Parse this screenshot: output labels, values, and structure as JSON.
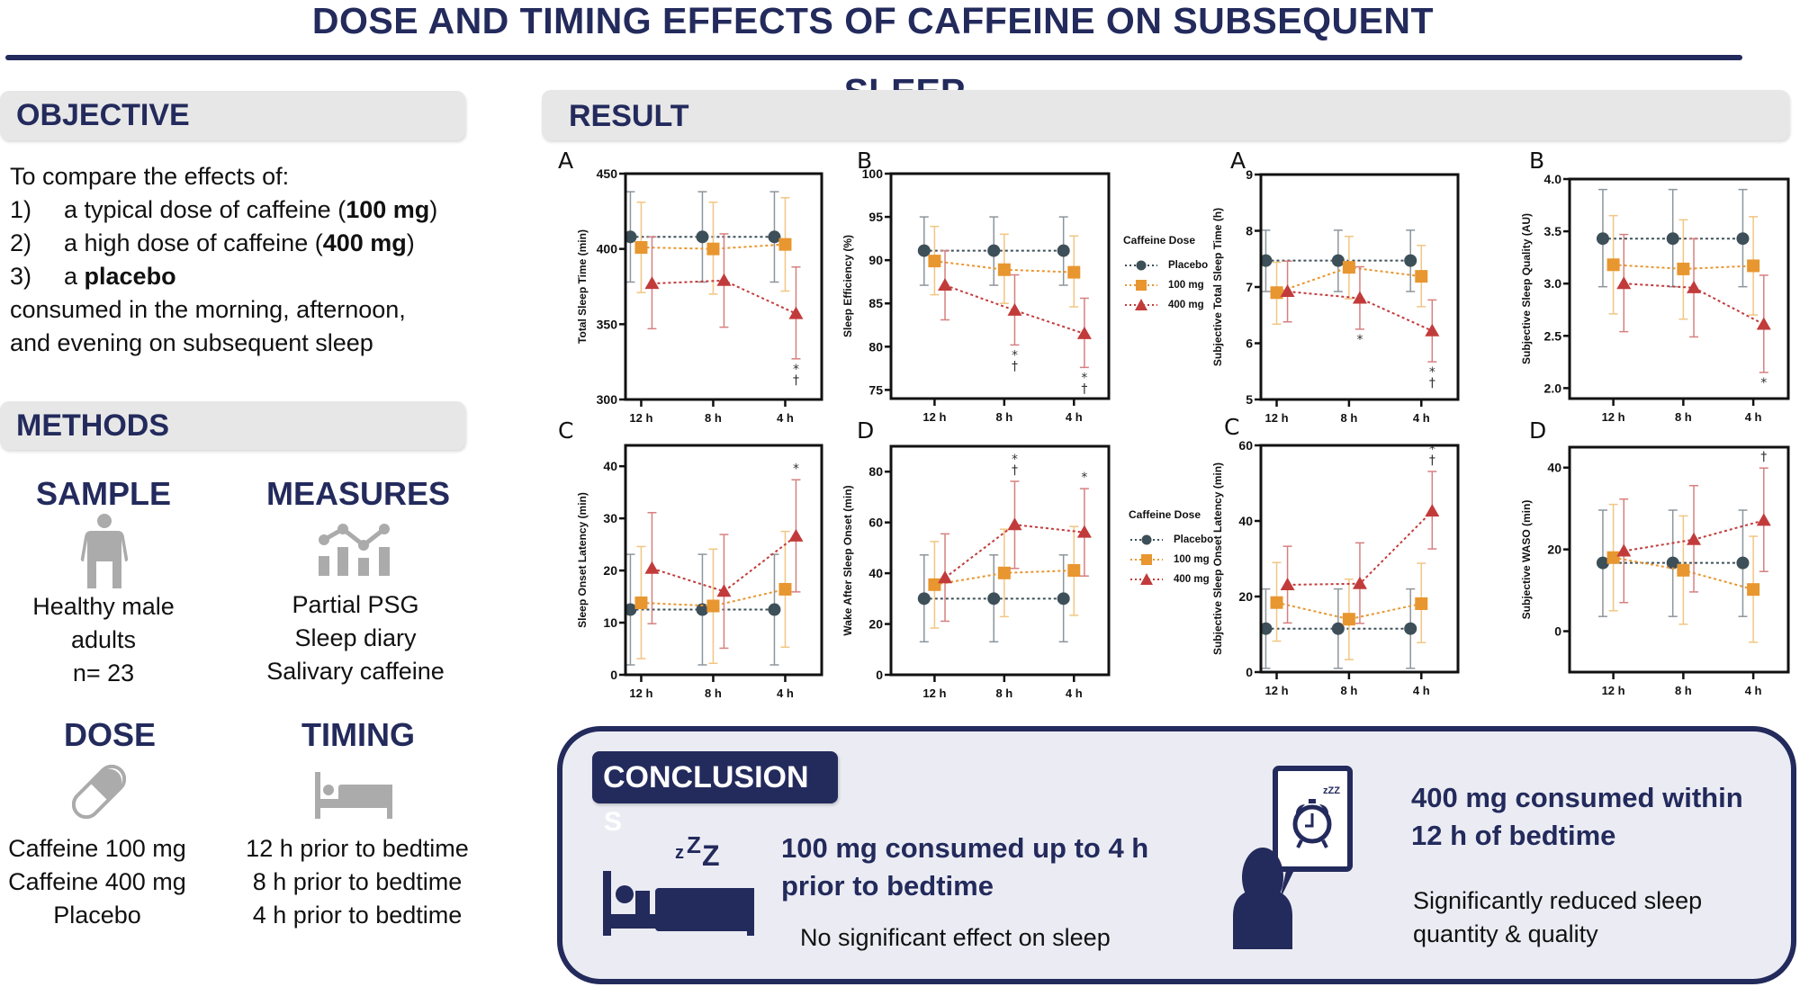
{
  "title": {
    "line1": "DOSE AND TIMING EFFECTS OF CAFFEINE ON SUBSEQUENT",
    "line2": "SLEEP"
  },
  "objective": {
    "heading": "OBJECTIVE",
    "intro": "To compare the effects of:",
    "items": [
      {
        "num": "1)",
        "pre": "a typical dose of caffeine (",
        "bold": "100 mg",
        "post": ")"
      },
      {
        "num": "2)",
        "pre": "a high dose of caffeine (",
        "bold": "400 mg",
        "post": ")"
      },
      {
        "num": "3)",
        "pre": "a ",
        "bold": "placebo",
        "post": ""
      }
    ],
    "outro1": "consumed in the morning, afternoon,",
    "outro2": "and evening on subsequent sleep"
  },
  "methods": {
    "heading": "METHODS",
    "sample": {
      "heading": "SAMPLE",
      "icon": "person-icon",
      "lines": [
        "Healthy male",
        "adults",
        "n= 23"
      ]
    },
    "measures": {
      "heading": "MEASURES",
      "icon": "chart-icon",
      "lines": [
        "Partial PSG",
        "Sleep diary",
        "Salivary caffeine"
      ]
    },
    "dose": {
      "heading": "DOSE",
      "icon": "pill-icon",
      "lines": [
        "Caffeine 100 mg",
        "Caffeine 400 mg",
        "Placebo"
      ]
    },
    "timing": {
      "heading": "TIMING",
      "icon": "bed-icon",
      "lines": [
        "12 h prior to bedtime",
        "8 h prior to bedtime",
        "4 h prior to bedtime"
      ]
    }
  },
  "result": {
    "heading": "RESULT"
  },
  "legend": {
    "title": "Caffeine Dose",
    "items": [
      "Placebo",
      "100 mg",
      "400 mg"
    ]
  },
  "colors": {
    "placebo": "#3d4f58",
    "mg100": "#e8962f",
    "mg400": "#c23b3b",
    "navy": "#232a5c"
  },
  "conclusion": {
    "heading": "CONCLUSION",
    "heading_overflow": "S",
    "left": {
      "line1": "100 mg consumed up to 4 h",
      "line2": "prior to bedtime",
      "detail": "No significant effect on sleep",
      "icon": "sleeping-bed-icon"
    },
    "right": {
      "line1": "400 mg consumed within",
      "line2": "12 h of bedtime",
      "detail1": "Significantly reduced sleep",
      "detail2": "quantity & quality",
      "icon": "person-alarm-clock-icon"
    }
  },
  "chart_data": [
    {
      "panel": "A",
      "type": "line",
      "ylabel": "Total Sleep Time (min)",
      "categories": [
        "12 h",
        "8 h",
        "4 h"
      ],
      "ylim": [
        300,
        450
      ],
      "yticks": [
        300,
        350,
        400,
        450
      ],
      "annotation_side": "below",
      "series": [
        {
          "name": "Placebo",
          "mean": [
            408,
            408,
            408
          ],
          "lower": [
            378,
            378,
            378
          ],
          "upper": [
            438,
            438,
            438
          ]
        },
        {
          "name": "100 mg",
          "mean": [
            401,
            400,
            403
          ],
          "lower": [
            371,
            370,
            372
          ],
          "upper": [
            431,
            431,
            434
          ]
        },
        {
          "name": "400 mg",
          "mean": [
            377,
            379,
            357
          ],
          "lower": [
            347,
            348,
            327
          ],
          "upper": [
            408,
            410,
            388
          ]
        }
      ],
      "annotations": [
        {
          "category": "4 h",
          "marks": [
            "*",
            "†"
          ]
        }
      ]
    },
    {
      "panel": "B",
      "type": "line",
      "ylabel": "Sleep Efficiency (%)",
      "categories": [
        "12 h",
        "8 h",
        "4 h"
      ],
      "ylim": [
        74,
        100
      ],
      "yticks": [
        75,
        80,
        85,
        90,
        95,
        100
      ],
      "annotation_side": "below",
      "series": [
        {
          "name": "Placebo",
          "mean": [
            91.1,
            91.1,
            91.1
          ],
          "lower": [
            87.1,
            87.1,
            87.1
          ],
          "upper": [
            95.0,
            95.0,
            95.0
          ]
        },
        {
          "name": "100 mg",
          "mean": [
            89.9,
            88.9,
            88.6
          ],
          "lower": [
            86.0,
            85.0,
            84.6
          ],
          "upper": [
            93.9,
            93.0,
            92.8
          ]
        },
        {
          "name": "400 mg",
          "mean": [
            87.1,
            84.2,
            81.5
          ],
          "lower": [
            83.1,
            80.2,
            77.6
          ],
          "upper": [
            91.1,
            88.3,
            85.6
          ]
        }
      ],
      "annotations": [
        {
          "category": "8 h",
          "marks": [
            "*",
            "†"
          ]
        },
        {
          "category": "4 h",
          "marks": [
            "*",
            "†"
          ]
        }
      ]
    },
    {
      "panel": "A",
      "type": "line",
      "ylabel": "Subjective Total Sleep Time (h)",
      "categories": [
        "12 h",
        "8 h",
        "4 h"
      ],
      "ylim": [
        5,
        9
      ],
      "yticks": [
        5,
        6,
        7,
        8,
        9
      ],
      "annotation_side": "below",
      "series": [
        {
          "name": "Placebo",
          "mean": [
            7.47,
            7.47,
            7.47
          ],
          "lower": [
            6.92,
            6.92,
            6.92
          ],
          "upper": [
            8.01,
            8.01,
            8.01
          ]
        },
        {
          "name": "100 mg",
          "mean": [
            6.9,
            7.35,
            7.19
          ],
          "lower": [
            6.34,
            6.79,
            6.65
          ],
          "upper": [
            7.44,
            7.9,
            7.74
          ]
        },
        {
          "name": "400 mg",
          "mean": [
            6.92,
            6.8,
            6.22
          ],
          "lower": [
            6.38,
            6.25,
            5.67
          ],
          "upper": [
            7.46,
            7.36,
            6.77
          ]
        }
      ],
      "annotations": [
        {
          "category": "8 h",
          "marks": [
            "*"
          ]
        },
        {
          "category": "4 h",
          "marks": [
            "*",
            "†"
          ]
        }
      ]
    },
    {
      "panel": "B",
      "type": "line",
      "ylabel": "Subjective Sleep Quality (AU)",
      "categories": [
        "12 h",
        "8 h",
        "4 h"
      ],
      "ylim": [
        1.9,
        4.0
      ],
      "yticks": [
        "2.0",
        "2.5",
        "3.0",
        "3.5",
        "4.0"
      ],
      "annotation_side": "below",
      "series": [
        {
          "name": "Placebo",
          "mean": [
            3.43,
            3.43,
            3.43
          ],
          "lower": [
            2.97,
            2.97,
            2.97
          ],
          "upper": [
            3.9,
            3.9,
            3.9
          ]
        },
        {
          "name": "100 mg",
          "mean": [
            3.18,
            3.14,
            3.17
          ],
          "lower": [
            2.71,
            2.66,
            2.7
          ],
          "upper": [
            3.65,
            3.61,
            3.64
          ]
        },
        {
          "name": "400 mg",
          "mean": [
            3.0,
            2.96,
            2.61
          ],
          "lower": [
            2.54,
            2.49,
            2.15
          ],
          "upper": [
            3.47,
            3.43,
            3.08
          ]
        }
      ],
      "annotations": [
        {
          "category": "4 h",
          "marks": [
            "*"
          ]
        }
      ]
    },
    {
      "panel": "C",
      "type": "line",
      "ylabel": "Sleep Onset Latency (min)",
      "categories": [
        "12 h",
        "8 h",
        "4 h"
      ],
      "ylim": [
        0,
        44
      ],
      "yticks": [
        0,
        10,
        20,
        30,
        40
      ],
      "annotation_side": "above",
      "series": [
        {
          "name": "Placebo",
          "mean": [
            12.5,
            12.5,
            12.5
          ],
          "lower": [
            1.9,
            1.9,
            1.9
          ],
          "upper": [
            23.1,
            23.1,
            23.1
          ]
        },
        {
          "name": "100 mg",
          "mean": [
            13.8,
            13.2,
            16.4
          ],
          "lower": [
            3.1,
            2.2,
            5.3
          ],
          "upper": [
            24.6,
            24.1,
            27.5
          ]
        },
        {
          "name": "400 mg",
          "mean": [
            20.4,
            16.0,
            26.6
          ],
          "lower": [
            9.8,
            5.1,
            15.9
          ],
          "upper": [
            31.1,
            26.9,
            37.4
          ]
        }
      ],
      "annotations": [
        {
          "category": "4 h",
          "marks": [
            "*"
          ]
        }
      ]
    },
    {
      "panel": "D",
      "type": "line",
      "ylabel": "Wake After Sleep Onset (min)",
      "categories": [
        "12 h",
        "8 h",
        "4 h"
      ],
      "ylim": [
        0,
        90
      ],
      "yticks": [
        0,
        20,
        40,
        60,
        80
      ],
      "annotation_side": "above",
      "series": [
        {
          "name": "Placebo",
          "mean": [
            30,
            30,
            30
          ],
          "lower": [
            13,
            13,
            13
          ],
          "upper": [
            47.2,
            47.2,
            47.2
          ]
        },
        {
          "name": "100 mg",
          "mean": [
            35.5,
            40.1,
            41.1
          ],
          "lower": [
            18.4,
            22.9,
            23.4
          ],
          "upper": [
            52.5,
            57.3,
            58.4
          ]
        },
        {
          "name": "400 mg",
          "mean": [
            38.2,
            59.1,
            56.1
          ],
          "lower": [
            21.1,
            41.9,
            38.9
          ],
          "upper": [
            55.5,
            76.2,
            73.3
          ]
        }
      ],
      "annotations": [
        {
          "category": "8 h",
          "marks": [
            "*",
            "†"
          ]
        },
        {
          "category": "4 h",
          "marks": [
            "*"
          ]
        }
      ]
    },
    {
      "panel": "C",
      "type": "line",
      "ylabel": "Subjective Sleep Onset Latency  (min)",
      "categories": [
        "12 h",
        "8 h",
        "4 h"
      ],
      "ylim": [
        0,
        60
      ],
      "yticks": [
        0,
        20,
        40,
        60
      ],
      "annotation_side": "above",
      "series": [
        {
          "name": "Placebo",
          "mean": [
            11.5,
            11.5,
            11.5
          ],
          "lower": [
            1,
            1,
            1
          ],
          "upper": [
            22,
            22,
            22
          ]
        },
        {
          "name": "100 mg",
          "mean": [
            18.4,
            14.0,
            18.1
          ],
          "lower": [
            8.2,
            3.3,
            7.8
          ],
          "upper": [
            29.0,
            24.6,
            28.8
          ]
        },
        {
          "name": "400 mg",
          "mean": [
            23.1,
            23.4,
            42.6
          ],
          "lower": [
            13.0,
            12.9,
            32.6
          ],
          "upper": [
            33.3,
            34.2,
            53.1
          ]
        }
      ],
      "annotations": [
        {
          "category": "4 h",
          "marks": [
            "*",
            "†"
          ]
        }
      ]
    },
    {
      "panel": "D",
      "type": "line",
      "ylabel": "Subjective WASO (min)",
      "categories": [
        "12 h",
        "8 h",
        "4 h"
      ],
      "ylim": [
        -10,
        45
      ],
      "yticks": [
        0,
        20,
        40
      ],
      "annotation_side": "above",
      "series": [
        {
          "name": "Placebo",
          "mean": [
            16.7,
            16.7,
            16.7
          ],
          "lower": [
            3.6,
            3.6,
            3.6
          ],
          "upper": [
            29.6,
            29.6,
            29.6
          ]
        },
        {
          "name": "100 mg",
          "mean": [
            18.0,
            14.9,
            10.2
          ],
          "lower": [
            5.0,
            1.7,
            -2.7
          ],
          "upper": [
            31.0,
            28.2,
            23.2
          ]
        },
        {
          "name": "400 mg",
          "mean": [
            19.6,
            22.4,
            27.1
          ],
          "lower": [
            7.0,
            9.6,
            14.6
          ],
          "upper": [
            32.3,
            35.6,
            39.9
          ]
        }
      ],
      "annotations": [
        {
          "category": "4 h",
          "marks": [
            "†"
          ]
        }
      ]
    }
  ]
}
